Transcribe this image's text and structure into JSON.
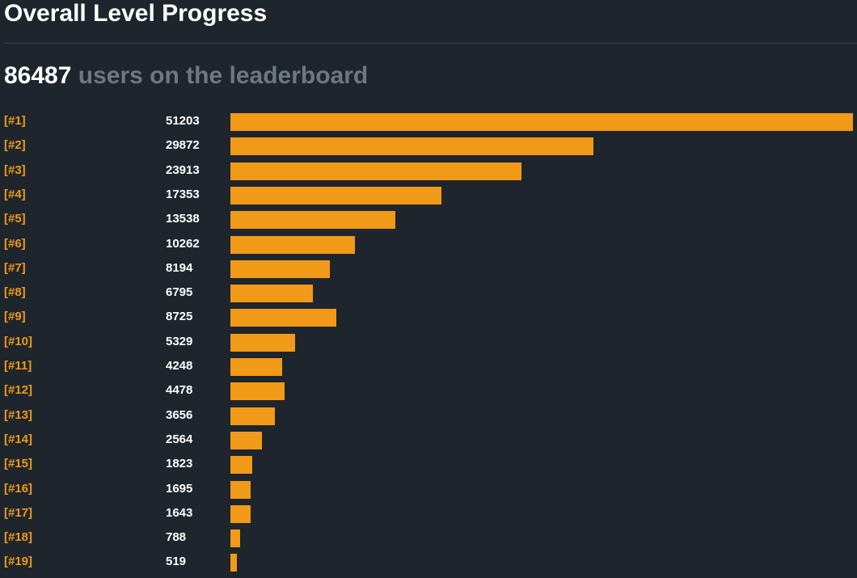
{
  "header": {
    "title": "Overall Level Progress"
  },
  "summary": {
    "count": "86487",
    "suffix": "users on the leaderboard"
  },
  "colors": {
    "background": "#1e252d",
    "bar": "#f09a18",
    "rank_text": "#f09a18",
    "muted_text": "#6f7880"
  },
  "chart_data": {
    "type": "bar",
    "orientation": "horizontal",
    "title": "",
    "categories": [
      "[#1]",
      "[#2]",
      "[#3]",
      "[#4]",
      "[#5]",
      "[#6]",
      "[#7]",
      "[#8]",
      "[#9]",
      "[#10]",
      "[#11]",
      "[#12]",
      "[#13]",
      "[#14]",
      "[#15]",
      "[#16]",
      "[#17]",
      "[#18]",
      "[#19]"
    ],
    "values": [
      51203,
      29872,
      23913,
      17353,
      13538,
      10262,
      8194,
      6795,
      8725,
      5329,
      4248,
      4478,
      3656,
      2564,
      1823,
      1695,
      1643,
      788,
      519
    ],
    "xlim": [
      0,
      51203
    ],
    "grid": false,
    "legend": "none"
  }
}
